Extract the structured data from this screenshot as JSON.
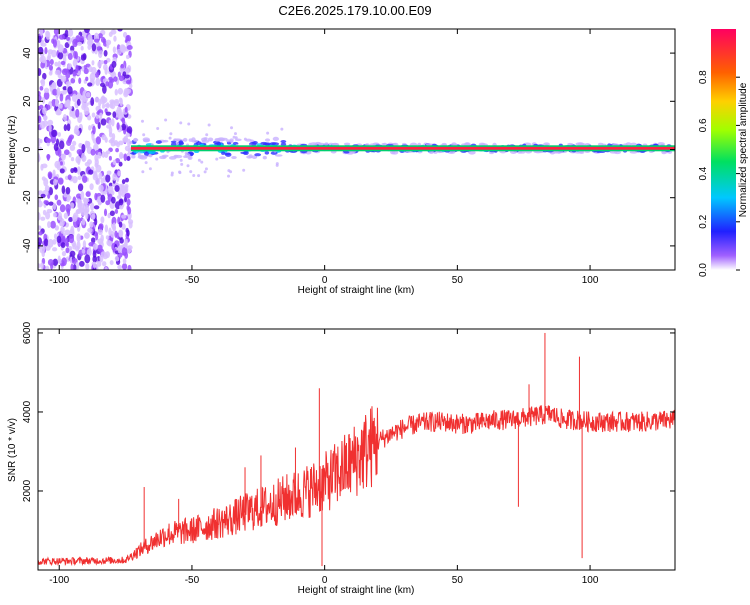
{
  "page": {
    "title": "C2E6.2025.179.10.00.E09"
  },
  "chart_data": [
    {
      "type": "heatmap",
      "title": "C2E6.2025.179.10.00.E09",
      "xlabel": "Height of straight line (km)",
      "ylabel": "Frequency (Hz)",
      "xlim": [
        -108,
        132
      ],
      "ylim": [
        -50,
        50
      ],
      "xticks": [
        -100,
        -50,
        0,
        50,
        100
      ],
      "yticks": [
        -40,
        -20,
        0,
        20,
        40
      ],
      "noise_region_x": [
        -108,
        -73
      ],
      "signal_frequency": 0.5,
      "colorbar": {
        "label": "Normalized spectral amplitude",
        "range": [
          0,
          1
        ],
        "ticks": [
          0.0,
          0.2,
          0.4,
          0.6,
          0.8
        ]
      }
    },
    {
      "type": "line",
      "xlabel": "Height of straight line (km)",
      "ylabel": "SNR (10 * v/v)",
      "xlim": [
        -108,
        132
      ],
      "ylim": [
        0,
        6100
      ],
      "xticks": [
        -100,
        -50,
        0,
        50,
        100
      ],
      "yticks": [
        2000,
        4000,
        6000
      ],
      "color": "#f03030",
      "series": [
        {
          "x": [
            -108,
            -90,
            -75,
            -72,
            -65,
            -60,
            -55,
            -50,
            -45,
            -40,
            -35,
            -30,
            -25,
            -20,
            -15,
            -10,
            -5,
            0,
            5,
            10,
            15,
            20,
            25,
            30,
            35,
            40,
            45,
            50,
            55,
            60,
            65,
            70,
            75,
            80,
            85,
            90,
            95,
            100,
            110,
            120,
            132
          ],
          "y": [
            220,
            230,
            250,
            400,
            700,
            900,
            950,
            1000,
            1100,
            1200,
            1300,
            1450,
            1550,
            1650,
            1800,
            1900,
            2050,
            2200,
            2450,
            2700,
            3000,
            3250,
            3450,
            3600,
            3700,
            3750,
            3750,
            3700,
            3700,
            3750,
            3800,
            3800,
            3850,
            3900,
            3950,
            3800,
            3800,
            3750,
            3750,
            3750,
            3800
          ]
        }
      ],
      "spikes": [
        {
          "x": -68,
          "y": 2100
        },
        {
          "x": -55,
          "y": 1800
        },
        {
          "x": -30,
          "y": 2600
        },
        {
          "x": -24,
          "y": 2900
        },
        {
          "x": -11,
          "y": 3100
        },
        {
          "x": -2,
          "y": 4600
        },
        {
          "x": -1,
          "y": 100
        },
        {
          "x": 73,
          "y": 1600
        },
        {
          "x": 77,
          "y": 4700
        },
        {
          "x": 83,
          "y": 6000
        },
        {
          "x": 96,
          "y": 5400
        },
        {
          "x": 97,
          "y": 300
        }
      ]
    }
  ]
}
